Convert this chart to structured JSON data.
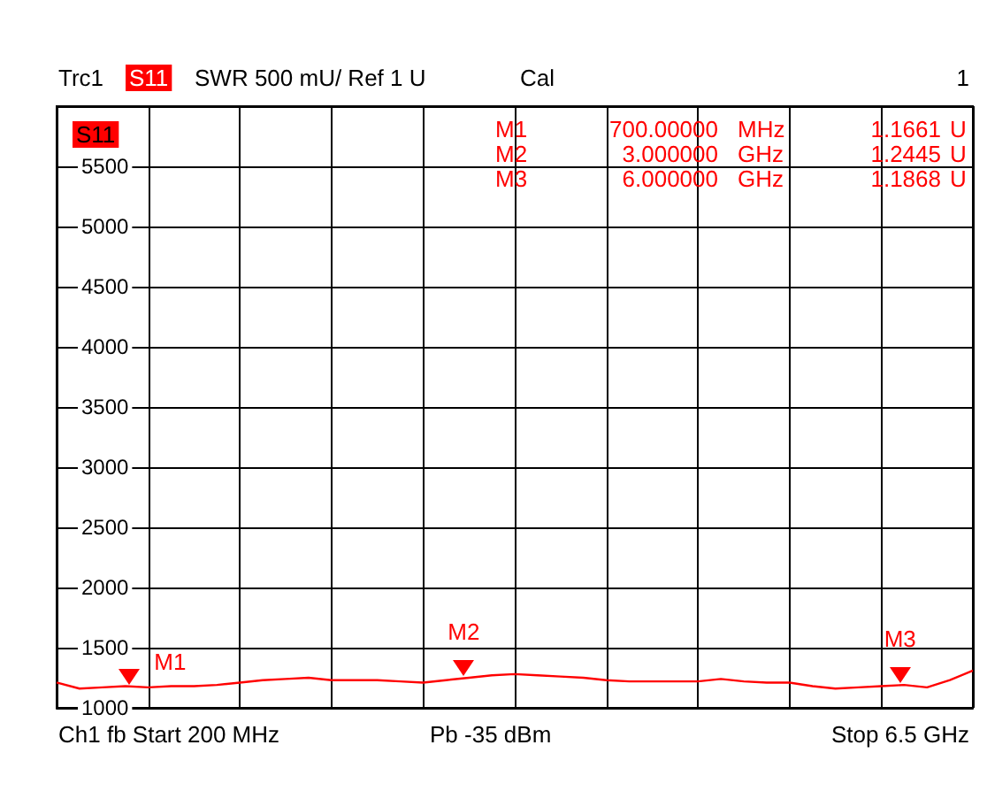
{
  "chart_data": {
    "type": "line",
    "annotations": [
      "Trc1",
      "S11",
      "SWR 500 mU/ Ref 1 U",
      "Cal",
      "1",
      "S11",
      "M1 700.00000 MHz 1.1661 U",
      "M2 3.000000 GHz 1.2445 U",
      "M3 6.000000 GHz 1.1868 U",
      "Ch1 fb Start 200 MHz",
      "Pb -35 dBm",
      "Stop 6.5 GHz",
      "M1",
      "M2",
      "M3"
    ],
    "categories": [
      null,
      null,
      null,
      null,
      null,
      null,
      null,
      null,
      null,
      null,
      null,
      null,
      null,
      null,
      null,
      null,
      null,
      null,
      null,
      null,
      null,
      null,
      null,
      null,
      null,
      null,
      null,
      null,
      null,
      null,
      null,
      null,
      null,
      null,
      null,
      null,
      null,
      null,
      null,
      null,
      null
    ],
    "series": [
      {
        "color": "#ff0000",
        "values": [
          1210,
          1160,
          1170,
          1180,
          1170,
          1180,
          1180,
          1190,
          1210,
          1230,
          1240,
          1250,
          1230,
          1230,
          1230,
          1220,
          1210,
          1230,
          1250,
          1270,
          1280,
          1270,
          1260,
          1250,
          1230,
          1220,
          1220,
          1220,
          1220,
          1240,
          1220,
          1210,
          1210,
          1180,
          1160,
          1170,
          1180,
          1190,
          1170,
          1230,
          1310
        ]
      }
    ],
    "ylim": [
      1000,
      6000
    ],
    "yticks": [
      1000,
      1500,
      2000,
      2500,
      3000,
      3500,
      4000,
      4500,
      5000,
      5500,
      {
        "value": 6000,
        "label": null
      }
    ],
    "tick_labels": "y",
    "grid": true,
    "marker": "none",
    "line_style": "solid"
  }
}
